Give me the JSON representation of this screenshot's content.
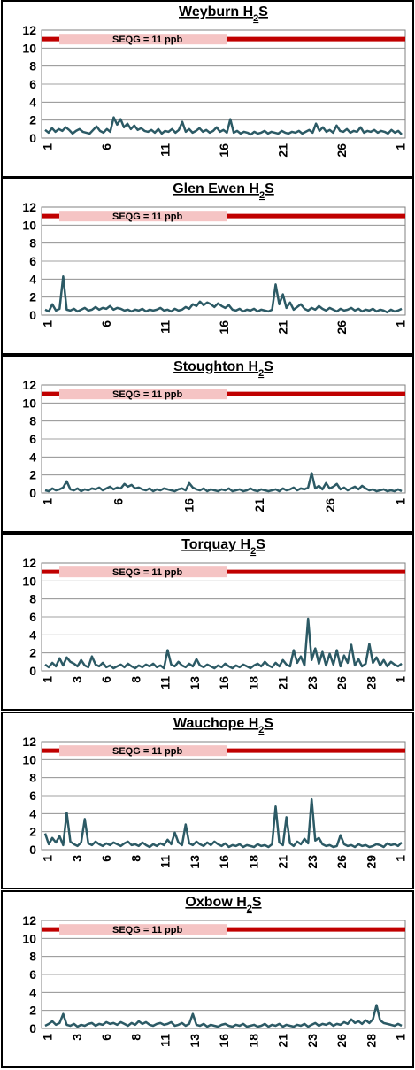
{
  "panel_y_axis": {
    "min": 0,
    "max": 12,
    "ticks": [
      "0",
      "2",
      "4",
      "6",
      "8",
      "10",
      "12"
    ]
  },
  "chart_data": [
    {
      "type": "line",
      "title_prefix": "Weyburn H",
      "title_sub": "2",
      "title_suffix": "S",
      "x_ticks": [
        "1",
        "6",
        "11",
        "16",
        "21",
        "26",
        "1"
      ],
      "guideline": {
        "label": "SEQG = 11 ppb",
        "value": 11
      },
      "ylim": [
        0,
        12
      ],
      "series": [
        {
          "values": [
            0.9,
            0.6,
            1.1,
            0.7,
            1.0,
            0.8,
            1.2,
            0.9,
            0.5,
            0.8,
            1.0,
            0.7,
            0.6,
            0.5,
            0.9,
            1.3,
            0.8,
            0.6,
            1.0,
            0.7,
            2.3,
            1.5,
            2.1,
            1.2,
            1.6,
            1.0,
            1.4,
            0.9,
            1.1,
            0.8,
            0.7,
            0.9,
            0.6,
            1.0,
            0.5,
            0.8,
            0.7,
            1.0,
            0.6,
            0.9,
            1.8,
            0.7,
            1.0,
            0.6,
            0.8,
            1.1,
            0.7,
            0.9,
            0.6,
            0.8,
            1.2,
            0.7,
            0.9,
            0.6,
            2.1,
            0.6,
            0.8,
            0.5,
            0.7,
            0.6,
            0.4,
            0.7,
            0.5,
            0.6,
            0.8,
            0.5,
            0.7,
            0.6,
            0.5,
            0.8,
            0.6,
            0.5,
            0.7,
            0.6,
            0.8,
            0.5,
            0.7,
            0.9,
            0.6,
            1.6,
            0.8,
            1.2,
            0.7,
            0.9,
            0.6,
            1.4,
            0.8,
            0.7,
            1.0,
            0.6,
            0.8,
            0.7,
            1.2,
            0.6,
            0.8,
            0.7,
            0.9,
            0.6,
            0.8,
            0.7,
            0.5,
            0.9,
            0.6,
            0.8,
            0.4
          ]
        }
      ]
    },
    {
      "type": "line",
      "title_prefix": "Glen Ewen H",
      "title_sub": "2",
      "title_suffix": "S",
      "x_ticks": [
        "1",
        "6",
        "11",
        "16",
        "21",
        "26",
        "1"
      ],
      "guideline": {
        "label": "SEQG = 11 ppb",
        "value": 11
      },
      "ylim": [
        0,
        12
      ],
      "series": [
        {
          "values": [
            0.6,
            0.4,
            1.2,
            0.5,
            0.7,
            4.3,
            0.6,
            0.5,
            0.7,
            0.4,
            0.6,
            0.8,
            0.5,
            0.6,
            0.9,
            0.6,
            0.8,
            0.7,
            1.0,
            0.6,
            0.8,
            0.7,
            0.5,
            0.6,
            0.4,
            0.6,
            0.5,
            0.7,
            0.4,
            0.6,
            0.5,
            0.6,
            0.8,
            0.5,
            0.6,
            0.4,
            0.7,
            0.5,
            0.6,
            0.9,
            0.7,
            1.2,
            1.0,
            1.5,
            1.1,
            1.4,
            1.2,
            0.9,
            1.3,
            1.0,
            0.8,
            1.1,
            0.6,
            0.5,
            0.7,
            0.4,
            0.6,
            0.5,
            0.7,
            0.4,
            0.6,
            0.5,
            0.4,
            0.6,
            3.4,
            1.2,
            2.3,
            0.8,
            1.4,
            0.6,
            0.9,
            1.2,
            0.7,
            0.5,
            0.8,
            0.6,
            1.0,
            0.7,
            0.5,
            0.8,
            0.6,
            0.4,
            0.7,
            0.5,
            0.6,
            0.8,
            0.5,
            0.7,
            0.4,
            0.6,
            0.5,
            0.7,
            0.4,
            0.6,
            0.5,
            0.3,
            0.6,
            0.4,
            0.5,
            0.7
          ]
        }
      ]
    },
    {
      "type": "line",
      "title_prefix": "Stoughton H",
      "title_sub": "2",
      "title_suffix": "S",
      "x_ticks": [
        "1",
        "6",
        "16",
        "21",
        "26",
        "1"
      ],
      "guideline": {
        "label": "SEQG = 11 ppb",
        "value": 11
      },
      "ylim": [
        0,
        12
      ],
      "series": [
        {
          "values": [
            0.3,
            0.2,
            0.5,
            0.3,
            0.4,
            0.6,
            1.3,
            0.4,
            0.3,
            0.5,
            0.2,
            0.4,
            0.3,
            0.5,
            0.4,
            0.6,
            0.3,
            0.5,
            0.7,
            0.4,
            0.6,
            0.5,
            1.0,
            0.7,
            0.9,
            0.5,
            0.6,
            0.4,
            0.3,
            0.5,
            0.2,
            0.4,
            0.3,
            0.5,
            0.4,
            0.3,
            0.2,
            0.4,
            0.5,
            0.3,
            1.1,
            0.6,
            0.4,
            0.3,
            0.5,
            0.2,
            0.4,
            0.3,
            0.2,
            0.4,
            0.3,
            0.5,
            0.2,
            0.3,
            0.4,
            0.2,
            0.3,
            0.5,
            0.3,
            0.2,
            0.4,
            0.3,
            0.2,
            0.3,
            0.4,
            0.2,
            0.5,
            0.3,
            0.4,
            0.6,
            0.3,
            0.5,
            0.4,
            0.6,
            2.2,
            0.5,
            0.8,
            0.4,
            1.1,
            0.5,
            0.7,
            1.0,
            0.4,
            0.6,
            0.3,
            0.5,
            0.7,
            0.4,
            0.8,
            0.5,
            0.3,
            0.4,
            0.2,
            0.3,
            0.4,
            0.2,
            0.3,
            0.2,
            0.4,
            0.2
          ]
        }
      ]
    },
    {
      "type": "line",
      "title_prefix": "Torquay H",
      "title_sub": "2",
      "title_suffix": "S",
      "x_ticks": [
        "1",
        "3",
        "6",
        "8",
        "11",
        "13",
        "16",
        "18",
        "21",
        "23",
        "26",
        "28",
        "1"
      ],
      "guideline": {
        "label": "SEQG = 11 ppb",
        "value": 11
      },
      "ylim": [
        0,
        12
      ],
      "series": [
        {
          "values": [
            0.7,
            0.4,
            0.9,
            0.5,
            1.4,
            0.6,
            1.5,
            1.0,
            0.8,
            0.5,
            1.2,
            0.6,
            0.4,
            1.6,
            0.7,
            0.5,
            0.9,
            0.4,
            0.6,
            0.3,
            0.5,
            0.7,
            0.4,
            0.8,
            0.5,
            0.3,
            0.6,
            0.4,
            0.7,
            0.5,
            0.8,
            0.4,
            0.6,
            0.3,
            2.3,
            0.7,
            0.5,
            1.0,
            0.6,
            0.4,
            0.8,
            0.5,
            1.3,
            0.6,
            0.4,
            0.7,
            0.5,
            0.3,
            0.6,
            0.4,
            0.8,
            0.5,
            0.3,
            0.6,
            0.4,
            0.7,
            0.5,
            0.3,
            0.6,
            0.8,
            0.5,
            1.0,
            0.6,
            0.4,
            0.9,
            0.5,
            1.2,
            0.7,
            0.5,
            2.3,
            0.9,
            1.6,
            0.6,
            5.8,
            1.2,
            2.5,
            0.8,
            2.1,
            0.6,
            1.9,
            0.7,
            2.3,
            0.5,
            1.7,
            0.9,
            2.9,
            0.6,
            1.3,
            0.5,
            0.8,
            3.0,
            0.9,
            1.5,
            0.6,
            1.2,
            0.5,
            1.0,
            0.7,
            0.5,
            0.8
          ]
        }
      ]
    },
    {
      "type": "line",
      "title_prefix": "Wauchope H",
      "title_sub": "2",
      "title_suffix": "S",
      "x_ticks": [
        "1",
        "3",
        "6",
        "8",
        "11",
        "13",
        "16",
        "18",
        "21",
        "23",
        "26",
        "29",
        "1"
      ],
      "guideline": {
        "label": "SEQG = 11 ppb",
        "value": 11
      },
      "ylim": [
        0,
        12
      ],
      "series": [
        {
          "values": [
            1.8,
            0.6,
            1.3,
            0.8,
            1.5,
            0.5,
            4.1,
            0.9,
            0.6,
            0.4,
            0.8,
            3.4,
            0.7,
            0.5,
            0.9,
            0.6,
            0.4,
            0.7,
            0.5,
            0.8,
            0.6,
            0.4,
            0.7,
            0.9,
            0.5,
            0.6,
            0.4,
            0.8,
            0.5,
            0.3,
            0.6,
            0.4,
            0.7,
            0.5,
            1.1,
            0.6,
            1.9,
            0.8,
            0.5,
            2.8,
            0.7,
            0.5,
            0.9,
            0.6,
            0.4,
            0.8,
            0.5,
            0.9,
            0.6,
            0.4,
            0.7,
            0.3,
            0.5,
            0.4,
            0.6,
            0.3,
            0.5,
            0.4,
            0.3,
            0.6,
            0.4,
            0.5,
            0.3,
            0.6,
            4.8,
            0.8,
            0.5,
            3.6,
            0.7,
            0.4,
            0.9,
            0.6,
            1.2,
            0.7,
            5.6,
            1.0,
            1.3,
            0.6,
            0.4,
            0.5,
            0.3,
            0.4,
            1.6,
            0.6,
            0.4,
            0.5,
            0.3,
            0.6,
            0.4,
            0.5,
            0.3,
            0.4,
            0.6,
            0.5,
            0.3,
            0.7,
            0.5,
            0.6,
            0.4,
            0.8
          ]
        }
      ]
    },
    {
      "type": "line",
      "title_prefix": "Oxbow H",
      "title_sub": "2",
      "title_suffix": "S",
      "x_ticks": [
        "1",
        "3",
        "6",
        "8",
        "11",
        "13",
        "16",
        "18",
        "21",
        "23",
        "26",
        "28",
        "1"
      ],
      "guideline": {
        "label": "SEQG = 11 ppb",
        "value": 11
      },
      "ylim": [
        0,
        12
      ],
      "series": [
        {
          "values": [
            0.3,
            0.5,
            0.8,
            0.4,
            0.6,
            1.6,
            0.4,
            0.3,
            0.5,
            0.2,
            0.4,
            0.3,
            0.5,
            0.6,
            0.3,
            0.5,
            0.4,
            0.7,
            0.5,
            0.6,
            0.4,
            0.7,
            0.5,
            0.3,
            0.6,
            0.4,
            0.8,
            0.5,
            0.7,
            0.4,
            0.3,
            0.5,
            0.6,
            0.4,
            0.5,
            0.7,
            0.3,
            0.4,
            0.6,
            0.3,
            0.5,
            1.6,
            0.4,
            0.3,
            0.5,
            0.2,
            0.4,
            0.3,
            0.2,
            0.4,
            0.5,
            0.3,
            0.2,
            0.4,
            0.3,
            0.5,
            0.2,
            0.3,
            0.4,
            0.2,
            0.3,
            0.5,
            0.2,
            0.4,
            0.3,
            0.5,
            0.2,
            0.4,
            0.3,
            0.2,
            0.4,
            0.3,
            0.5,
            0.2,
            0.4,
            0.6,
            0.3,
            0.5,
            0.4,
            0.6,
            0.3,
            0.5,
            0.4,
            0.7,
            0.5,
            1.0,
            0.6,
            0.8,
            0.5,
            0.9,
            0.6,
            1.0,
            2.6,
            0.9,
            0.6,
            0.5,
            0.4,
            0.3,
            0.5,
            0.3
          ]
        }
      ]
    }
  ],
  "colors": {
    "line": "#2c5a65",
    "guideline": "#c00000",
    "guideline_label_bg": "#f5c4c4",
    "grid": "#808080",
    "frame": "#000000"
  }
}
